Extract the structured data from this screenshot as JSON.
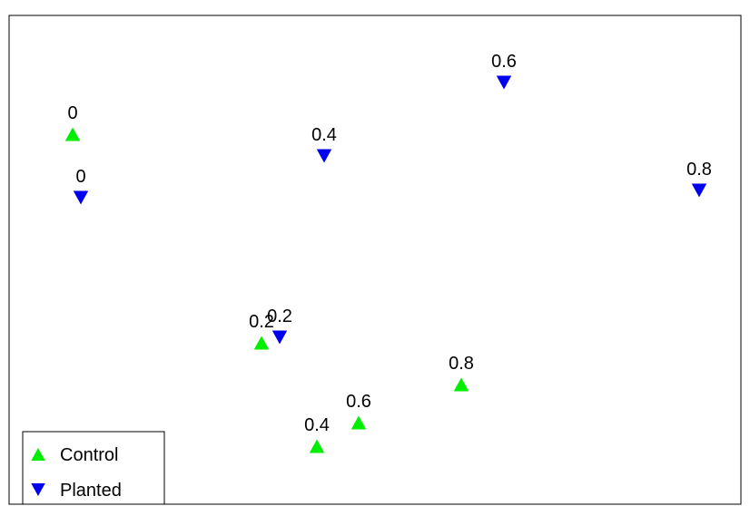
{
  "chart_data": {
    "type": "scatter",
    "title": "",
    "xlabel": "",
    "ylabel": "",
    "xlim": [
      0,
      826
    ],
    "ylim": [
      0,
      558
    ],
    "grid": false,
    "legend_position": "bottom-left",
    "series": [
      {
        "name": "Control",
        "marker": "triangle-up",
        "color": "#00ee00",
        "points": [
          {
            "x": 80,
            "y": 410,
            "label": "0"
          },
          {
            "x": 288,
            "y": 180,
            "label": "0.2"
          },
          {
            "x": 349,
            "y": 66,
            "label": "0.4"
          },
          {
            "x": 395,
            "y": 92,
            "label": "0.6"
          },
          {
            "x": 508,
            "y": 134,
            "label": "0.8"
          }
        ]
      },
      {
        "name": "Planted",
        "marker": "triangle-down",
        "color": "#0000ee",
        "points": [
          {
            "x": 89,
            "y": 340,
            "label": "0"
          },
          {
            "x": 308,
            "y": 186,
            "label": "0.2"
          },
          {
            "x": 357,
            "y": 386,
            "label": "0.4"
          },
          {
            "x": 555,
            "y": 467,
            "label": "0.6"
          },
          {
            "x": 770,
            "y": 348,
            "label": "0.8"
          }
        ]
      }
    ]
  }
}
